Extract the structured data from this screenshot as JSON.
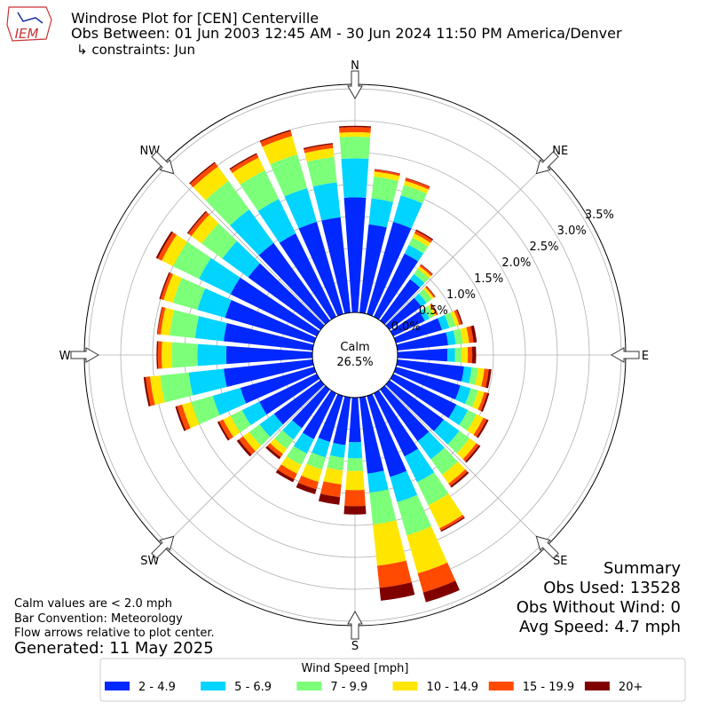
{
  "logo_text": "IEM",
  "chart_data": {
    "type": "windrose",
    "title": "Windrose Plot for [CEN] Centerville",
    "subtitle": "Obs Between: 01 Jun 2003 12:45 AM - 30 Jun 2024 11:50 PM America/Denver",
    "constraints": "↳ constraints: Jun",
    "calm_label": "Calm",
    "calm_value": "26.5%",
    "directions": [
      "N",
      "NE",
      "E",
      "SE",
      "S",
      "SW",
      "W",
      "NW"
    ],
    "x": [
      0,
      10,
      20,
      30,
      40,
      50,
      60,
      70,
      80,
      90,
      100,
      110,
      120,
      130,
      140,
      150,
      160,
      170,
      180,
      190,
      200,
      210,
      220,
      230,
      240,
      250,
      260,
      270,
      280,
      290,
      300,
      310,
      320,
      330,
      340,
      350
    ],
    "ylim": [
      0,
      3.57
    ],
    "yticks": [
      {
        "value": 0,
        "label": "0.0%"
      },
      {
        "value": 0.5,
        "label": "0.5%"
      },
      {
        "value": 1,
        "label": "1.0%"
      },
      {
        "value": 1.5,
        "label": "1.5%"
      },
      {
        "value": 2,
        "label": "2.0%"
      },
      {
        "value": 2.5,
        "label": "2.5%"
      },
      {
        "value": 3,
        "label": "3.0%"
      },
      {
        "value": 3.5,
        "label": "3.5%"
      }
    ],
    "grid": true,
    "legend_title": "Wind Speed [mph]",
    "legend_position": "bottom",
    "series": [
      {
        "name": "2 - 4.9",
        "color": "#0028ff",
        "values": [
          1.8,
          1.39,
          1.5,
          1.1,
          0.8,
          0.62,
          0.55,
          0.75,
          0.8,
          0.78,
          1.05,
          1.05,
          1.1,
          1.05,
          1.0,
          1.1,
          1.32,
          1.2,
          0.7,
          0.75,
          0.75,
          0.8,
          0.75,
          0.9,
          1.0,
          1.2,
          1.4,
          1.35,
          1.4,
          1.45,
          1.5,
          1.4,
          1.5,
          1.45,
          1.5,
          1.5
        ]
      },
      {
        "name": "5 - 6.9",
        "color": "#00d4ff",
        "values": [
          0.61,
          0.41,
          0.43,
          0.15,
          0.1,
          0.1,
          0.08,
          0.12,
          0.12,
          0.12,
          0.12,
          0.17,
          0.2,
          0.3,
          0.35,
          0.45,
          0.41,
          0.3,
          0.25,
          0.2,
          0.25,
          0.25,
          0.22,
          0.28,
          0.3,
          0.45,
          0.55,
          0.45,
          0.45,
          0.45,
          0.55,
          0.5,
          0.65,
          0.6,
          0.55,
          0.55
        ]
      },
      {
        "name": "7 - 9.9",
        "color": "#7cff79",
        "values": [
          0.34,
          0.34,
          0.17,
          0.13,
          0.1,
          0.1,
          0.08,
          0.1,
          0.11,
          0.1,
          0.1,
          0.12,
          0.15,
          0.2,
          0.3,
          0.4,
          0.54,
          0.5,
          0.2,
          0.2,
          0.2,
          0.2,
          0.18,
          0.2,
          0.2,
          0.35,
          0.45,
          0.4,
          0.4,
          0.4,
          0.45,
          0.4,
          0.55,
          0.5,
          0.55,
          0.4
        ]
      },
      {
        "name": "10 - 14.9",
        "color": "#ffe600",
        "values": [
          0.07,
          0.08,
          0.07,
          0.07,
          0.05,
          0.04,
          0.04,
          0.06,
          0.1,
          0.1,
          0.1,
          0.1,
          0.12,
          0.13,
          0.17,
          0.4,
          0.62,
          0.65,
          0.3,
          0.22,
          0.2,
          0.15,
          0.1,
          0.12,
          0.13,
          0.15,
          0.16,
          0.16,
          0.14,
          0.15,
          0.2,
          0.2,
          0.28,
          0.22,
          0.3,
          0.14
        ]
      },
      {
        "name": "15 - 19.9",
        "color": "#ff4a00",
        "values": [
          0.08,
          0.03,
          0.04,
          0.05,
          0.03,
          0.02,
          0.02,
          0.04,
          0.07,
          0.07,
          0.07,
          0.05,
          0.06,
          0.05,
          0.05,
          0.04,
          0.31,
          0.35,
          0.25,
          0.2,
          0.12,
          0.1,
          0.06,
          0.08,
          0.07,
          0.08,
          0.07,
          0.06,
          0.05,
          0.05,
          0.07,
          0.06,
          0.07,
          0.06,
          0.08,
          0.06
        ]
      },
      {
        "name": "20+",
        "color": "#800000",
        "values": [
          0.02,
          0.01,
          0.01,
          0.02,
          0.01,
          0.01,
          0.01,
          0.02,
          0.05,
          0.06,
          0.04,
          0.03,
          0.03,
          0.03,
          0.03,
          0.02,
          0.16,
          0.2,
          0.13,
          0.12,
          0.08,
          0.05,
          0.04,
          0.04,
          0.03,
          0.03,
          0.03,
          0.02,
          0.01,
          0.02,
          0.03,
          0.02,
          0.02,
          0.02,
          0.02,
          0.02
        ]
      }
    ],
    "notes": [
      "Calm values are < 2.0 mph",
      "Bar Convention: Meteorology",
      "Flow arrows relative to plot center."
    ],
    "generated": "Generated: 11 May 2025",
    "summary": [
      "Summary",
      "Obs Used: 13528",
      "Obs Without Wind: 0",
      "Avg Speed: 4.7 mph"
    ]
  }
}
